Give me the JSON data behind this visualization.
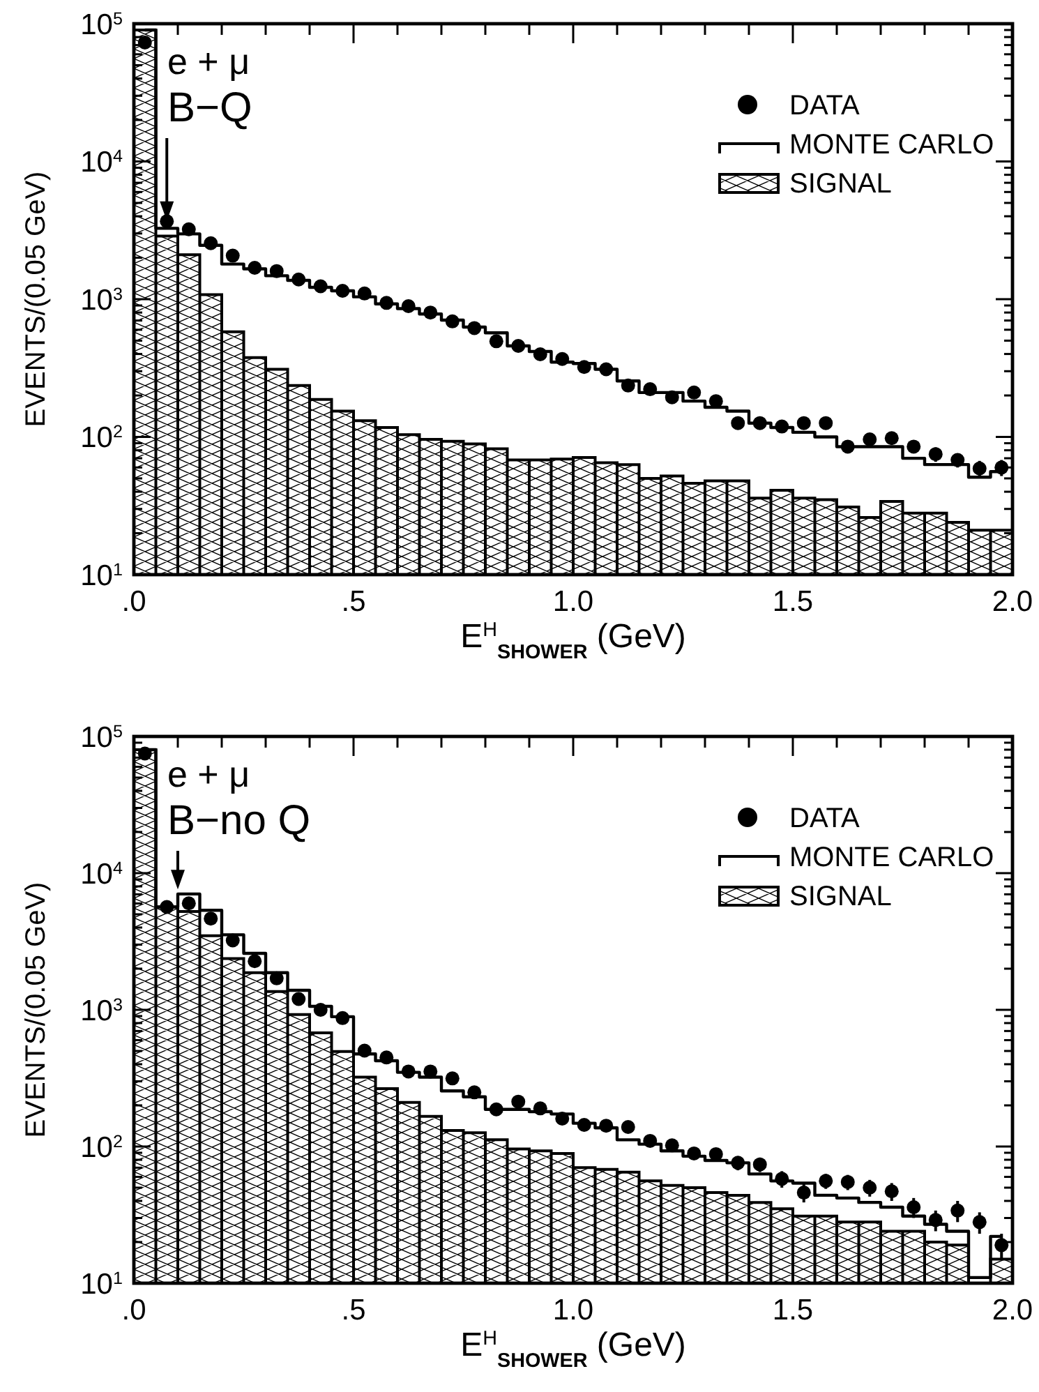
{
  "chart_data": [
    {
      "type": "histogram",
      "xlabel": "E$^{H}$$_{SHOWER}$ (GeV)",
      "ylabel": "EVENTS/(0.05 GeV)",
      "annotations": [
        "e + μ",
        {
          "text": "B−Q",
          "x": 0.075,
          "y": 3700
        }
      ],
      "log": true,
      "legend": "top right",
      "xlim": [
        0,
        2
      ],
      "ylim": [
        10,
        100000
      ],
      "xticks": [
        {
          "value": 0,
          "label": ".0"
        },
        {
          "value": 0.1,
          "label": null
        },
        {
          "value": 0.2,
          "label": null
        },
        {
          "value": 0.3,
          "label": null
        },
        {
          "value": 0.4,
          "label": null
        },
        {
          "value": 0.5,
          "label": ".5"
        },
        {
          "value": 0.6,
          "label": null
        },
        {
          "value": 0.7,
          "label": null
        },
        {
          "value": 0.8,
          "label": null
        },
        {
          "value": 0.9,
          "label": null
        },
        {
          "value": 1,
          "label": "1.0"
        },
        {
          "value": 1.1,
          "label": null
        },
        {
          "value": 1.2,
          "label": null
        },
        {
          "value": 1.3,
          "label": null
        },
        {
          "value": 1.4,
          "label": null
        },
        {
          "value": 1.5,
          "label": "1.5"
        },
        {
          "value": 1.6,
          "label": null
        },
        {
          "value": 1.7,
          "label": null
        },
        {
          "value": 1.8,
          "label": null
        },
        {
          "value": 1.9,
          "label": null
        },
        {
          "value": 2,
          "label": "2.0"
        }
      ],
      "yticks": [
        {
          "value": 10,
          "label": "10$^{1}$"
        },
        {
          "value": 20,
          "label": null
        },
        {
          "value": 30,
          "label": null
        },
        {
          "value": 40,
          "label": null
        },
        {
          "value": 50,
          "label": null
        },
        {
          "value": 60,
          "label": null
        },
        {
          "value": 70,
          "label": null
        },
        {
          "value": 80,
          "label": null
        },
        {
          "value": 90,
          "label": null
        },
        {
          "value": 100,
          "label": "10$^{2}$"
        },
        {
          "value": 200,
          "label": null
        },
        {
          "value": 300,
          "label": null
        },
        {
          "value": 400,
          "label": null
        },
        {
          "value": 500,
          "label": null
        },
        {
          "value": 600,
          "label": null
        },
        {
          "value": 700,
          "label": null
        },
        {
          "value": 800,
          "label": null
        },
        {
          "value": 900,
          "label": null
        },
        {
          "value": 1000,
          "label": "10$^{3}$"
        },
        {
          "value": 2000,
          "label": null
        },
        {
          "value": 3000,
          "label": null
        },
        {
          "value": 4000,
          "label": null
        },
        {
          "value": 5000,
          "label": null
        },
        {
          "value": 6000,
          "label": null
        },
        {
          "value": 7000,
          "label": null
        },
        {
          "value": 8000,
          "label": null
        },
        {
          "value": 9000,
          "label": null
        },
        {
          "value": 10000,
          "label": "10$^{4}$"
        },
        {
          "value": 20000,
          "label": null
        },
        {
          "value": 30000,
          "label": null
        },
        {
          "value": 40000,
          "label": null
        },
        {
          "value": 50000,
          "label": null
        },
        {
          "value": 60000,
          "label": null
        },
        {
          "value": 70000,
          "label": null
        },
        {
          "value": 80000,
          "label": null
        },
        {
          "value": 90000,
          "label": null
        },
        {
          "value": 100000,
          "label": "10$^{5}$"
        }
      ],
      "bins": [
        0,
        0.05,
        0.1,
        0.15,
        0.2,
        0.25,
        0.3,
        0.35,
        0.4,
        0.45,
        0.5,
        0.55,
        0.6,
        0.65,
        0.7,
        0.75,
        0.8,
        0.85,
        0.9,
        0.95,
        1,
        1.05,
        1.1,
        1.15,
        1.2,
        1.25,
        1.3,
        1.35,
        1.4,
        1.45,
        1.5,
        1.55,
        1.6,
        1.65,
        1.7,
        1.75,
        1.8,
        1.85,
        1.9,
        1.95,
        2
      ],
      "series": [
        {
          "name": "DATA",
          "type": "scatter",
          "color": "#000000",
          "marker": "circle",
          "x": [
            0.025,
            0.075,
            0.125,
            0.175,
            0.225,
            0.275,
            0.325,
            0.375,
            0.425,
            0.475,
            0.525,
            0.575,
            0.625,
            0.675,
            0.725,
            0.775,
            0.825,
            0.875,
            0.925,
            0.975,
            1.025,
            1.075,
            1.125,
            1.175,
            1.225,
            1.275,
            1.325,
            1.375,
            1.425,
            1.475,
            1.525,
            1.575,
            1.625,
            1.675,
            1.725,
            1.775,
            1.825,
            1.875,
            1.925,
            1.975
          ],
          "values": [
            73000,
            3680,
            3220,
            2550,
            2070,
            1690,
            1600,
            1390,
            1240,
            1150,
            1100,
            940,
            890,
            800,
            690,
            617,
            495,
            458,
            398,
            368,
            322,
            310,
            236,
            222,
            194,
            210,
            182,
            126,
            126,
            119,
            126,
            126,
            85,
            96,
            98,
            85,
            75,
            68,
            59,
            60
          ],
          "errors": [
            null,
            null,
            null,
            null,
            null,
            null,
            null,
            null,
            null,
            null,
            null,
            null,
            null,
            null,
            null,
            null,
            null,
            null,
            null,
            null,
            null,
            null,
            null,
            null,
            null,
            null,
            null,
            11,
            11,
            11,
            11,
            11,
            9,
            10,
            10,
            9,
            9,
            8,
            8,
            8
          ]
        },
        {
          "name": "MONTE CARLO",
          "type": "step",
          "color": "#000000",
          "x": [
            0.025,
            0.075,
            0.125,
            0.175,
            0.225,
            0.275,
            0.325,
            0.375,
            0.425,
            0.475,
            0.525,
            0.575,
            0.625,
            0.675,
            0.725,
            0.775,
            0.825,
            0.875,
            0.925,
            0.975,
            1.025,
            1.075,
            1.125,
            1.175,
            1.225,
            1.275,
            1.325,
            1.375,
            1.425,
            1.475,
            1.525,
            1.575,
            1.625,
            1.675,
            1.725,
            1.775,
            1.825,
            1.875,
            1.925,
            1.975
          ],
          "values": [
            90000,
            3270,
            2980,
            2460,
            1800,
            1660,
            1480,
            1370,
            1220,
            1150,
            1040,
            925,
            855,
            780,
            705,
            627,
            570,
            458,
            417,
            349,
            341,
            310,
            255,
            210,
            210,
            182,
            164,
            154,
            126,
            117,
            108,
            100,
            85,
            85,
            85,
            70,
            63,
            63,
            51,
            56
          ]
        },
        {
          "name": "SIGNAL",
          "type": "histogram",
          "color": "#000000",
          "values": [
            90000,
            2870,
            2100,
            1080,
            580,
            377,
            310,
            236,
            187,
            154,
            131,
            117,
            104,
            96,
            93,
            89,
            82,
            68,
            68,
            69,
            71,
            65,
            63,
            50,
            52,
            46,
            48,
            48,
            36,
            41,
            36,
            35,
            31,
            26,
            34,
            28,
            28,
            24,
            21,
            21
          ]
        }
      ]
    },
    {
      "type": "histogram",
      "xlabel": "E$^{H}$$_{SHOWER}$ (GeV)",
      "ylabel": "EVENTS/(0.05 GeV)",
      "annotations": [
        "e + μ",
        {
          "text": "B−no Q",
          "x": 0.1,
          "y": 7600
        }
      ],
      "log": true,
      "legend": "top right",
      "xlim": [
        0,
        2
      ],
      "ylim": [
        10,
        100000
      ],
      "xticks": [
        {
          "value": 0,
          "label": ".0"
        },
        {
          "value": 0.1,
          "label": null
        },
        {
          "value": 0.2,
          "label": null
        },
        {
          "value": 0.3,
          "label": null
        },
        {
          "value": 0.4,
          "label": null
        },
        {
          "value": 0.5,
          "label": ".5"
        },
        {
          "value": 0.6,
          "label": null
        },
        {
          "value": 0.7,
          "label": null
        },
        {
          "value": 0.8,
          "label": null
        },
        {
          "value": 0.9,
          "label": null
        },
        {
          "value": 1,
          "label": "1.0"
        },
        {
          "value": 1.1,
          "label": null
        },
        {
          "value": 1.2,
          "label": null
        },
        {
          "value": 1.3,
          "label": null
        },
        {
          "value": 1.4,
          "label": null
        },
        {
          "value": 1.5,
          "label": "1.5"
        },
        {
          "value": 1.6,
          "label": null
        },
        {
          "value": 1.7,
          "label": null
        },
        {
          "value": 1.8,
          "label": null
        },
        {
          "value": 1.9,
          "label": null
        },
        {
          "value": 2,
          "label": "2.0"
        }
      ],
      "yticks": [
        {
          "value": 10,
          "label": "10$^{1}$"
        },
        {
          "value": 20,
          "label": null
        },
        {
          "value": 30,
          "label": null
        },
        {
          "value": 40,
          "label": null
        },
        {
          "value": 50,
          "label": null
        },
        {
          "value": 60,
          "label": null
        },
        {
          "value": 70,
          "label": null
        },
        {
          "value": 80,
          "label": null
        },
        {
          "value": 90,
          "label": null
        },
        {
          "value": 100,
          "label": "10$^{2}$"
        },
        {
          "value": 200,
          "label": null
        },
        {
          "value": 300,
          "label": null
        },
        {
          "value": 400,
          "label": null
        },
        {
          "value": 500,
          "label": null
        },
        {
          "value": 600,
          "label": null
        },
        {
          "value": 700,
          "label": null
        },
        {
          "value": 800,
          "label": null
        },
        {
          "value": 900,
          "label": null
        },
        {
          "value": 1000,
          "label": "10$^{3}$"
        },
        {
          "value": 2000,
          "label": null
        },
        {
          "value": 3000,
          "label": null
        },
        {
          "value": 4000,
          "label": null
        },
        {
          "value": 5000,
          "label": null
        },
        {
          "value": 6000,
          "label": null
        },
        {
          "value": 7000,
          "label": null
        },
        {
          "value": 8000,
          "label": null
        },
        {
          "value": 9000,
          "label": null
        },
        {
          "value": 10000,
          "label": "10$^{4}$"
        },
        {
          "value": 20000,
          "label": null
        },
        {
          "value": 30000,
          "label": null
        },
        {
          "value": 40000,
          "label": null
        },
        {
          "value": 50000,
          "label": null
        },
        {
          "value": 60000,
          "label": null
        },
        {
          "value": 70000,
          "label": null
        },
        {
          "value": 80000,
          "label": null
        },
        {
          "value": 90000,
          "label": null
        },
        {
          "value": 100000,
          "label": "10$^{5}$"
        }
      ],
      "bins": [
        0,
        0.05,
        0.1,
        0.15,
        0.2,
        0.25,
        0.3,
        0.35,
        0.4,
        0.45,
        0.5,
        0.55,
        0.6,
        0.65,
        0.7,
        0.75,
        0.8,
        0.85,
        0.9,
        0.95,
        1,
        1.05,
        1.1,
        1.15,
        1.2,
        1.25,
        1.3,
        1.35,
        1.4,
        1.45,
        1.5,
        1.55,
        1.6,
        1.65,
        1.7,
        1.75,
        1.8,
        1.85,
        1.9,
        1.95,
        2
      ],
      "series": [
        {
          "name": "DATA",
          "type": "scatter",
          "color": "#000000",
          "marker": "circle",
          "x": [
            0.025,
            0.075,
            0.125,
            0.175,
            0.225,
            0.275,
            0.325,
            0.375,
            0.425,
            0.475,
            0.525,
            0.575,
            0.625,
            0.675,
            0.725,
            0.775,
            0.825,
            0.875,
            0.925,
            0.975,
            1.025,
            1.075,
            1.125,
            1.175,
            1.225,
            1.275,
            1.325,
            1.375,
            1.425,
            1.475,
            1.525,
            1.575,
            1.625,
            1.675,
            1.725,
            1.775,
            1.825,
            1.875,
            1.925,
            1.975
          ],
          "values": [
            75000,
            5660,
            6020,
            4650,
            3220,
            2270,
            1700,
            1200,
            1000,
            870,
            503,
            448,
            354,
            354,
            315,
            249,
            187,
            213,
            190,
            160,
            144,
            142,
            139,
            110,
            102,
            89,
            88,
            76,
            74,
            58,
            46,
            56,
            55,
            50,
            47,
            36,
            29,
            34,
            28,
            19
          ],
          "errors": [
            null,
            null,
            null,
            null,
            null,
            null,
            null,
            null,
            null,
            null,
            null,
            null,
            null,
            null,
            null,
            null,
            null,
            null,
            null,
            null,
            12,
            12,
            12,
            10,
            10,
            9,
            9,
            9,
            9,
            8,
            7,
            7,
            7,
            7,
            7,
            6,
            5,
            6,
            5,
            4
          ]
        },
        {
          "name": "MONTE CARLO",
          "type": "step",
          "color": "#000000",
          "x": [
            0.025,
            0.075,
            0.125,
            0.175,
            0.225,
            0.275,
            0.325,
            0.375,
            0.425,
            0.475,
            0.525,
            0.575,
            0.625,
            0.675,
            0.725,
            0.775,
            0.825,
            0.875,
            0.925,
            0.975,
            1.025,
            1.075,
            1.125,
            1.175,
            1.225,
            1.275,
            1.325,
            1.375,
            1.425,
            1.475,
            1.525,
            1.575,
            1.625,
            1.675,
            1.725,
            1.775,
            1.825,
            1.875,
            1.925,
            1.975
          ],
          "values": [
            80000,
            5660,
            7040,
            5350,
            3540,
            2590,
            1870,
            1390,
            1060,
            890,
            476,
            424,
            349,
            322,
            255,
            231,
            187,
            187,
            180,
            173,
            148,
            137,
            112,
            104,
            93,
            85,
            79,
            76,
            63,
            56,
            54,
            44,
            42,
            39,
            36,
            31,
            27,
            24,
            11,
            22
          ]
        },
        {
          "name": "SIGNAL",
          "type": "histogram",
          "color": "#000000",
          "values": [
            80000,
            5660,
            5240,
            3480,
            2370,
            1870,
            1360,
            925,
            678,
            495,
            322,
            265,
            210,
            166,
            131,
            126,
            112,
            96,
            93,
            89,
            70,
            68,
            65,
            56,
            52,
            50,
            46,
            44,
            39,
            35,
            31,
            31,
            28,
            28,
            24,
            24,
            20,
            19,
            null,
            15
          ]
        }
      ]
    }
  ]
}
